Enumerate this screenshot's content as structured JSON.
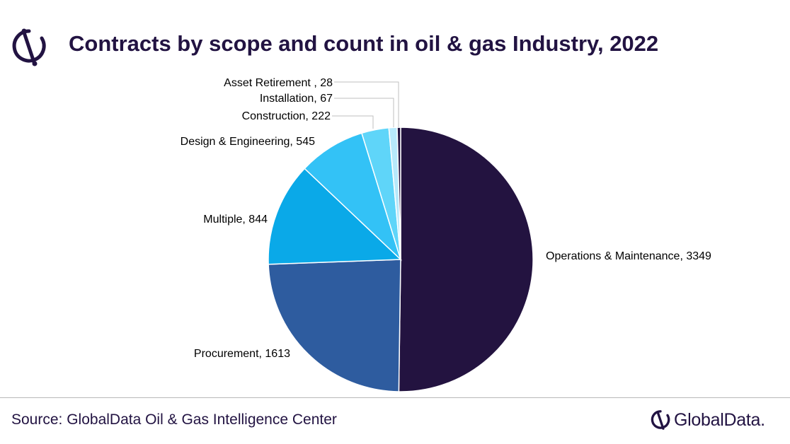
{
  "title": "Contracts by scope and count in oil & gas Industry, 2022",
  "footer": {
    "source": "Source: GlobalData Oil & Gas Intelligence Center",
    "brand": "GlobalData."
  },
  "colors": {
    "brand_dark": "#221342",
    "slices": [
      "#231340",
      "#2e5c9f",
      "#0aa9e8",
      "#33c2f6",
      "#5fd5f9",
      "#b7e9fb"
    ]
  },
  "icons": [
    "globaldata-logo-icon",
    "globaldata-brand-icon"
  ],
  "chart_data": {
    "type": "pie",
    "title": "Contracts by scope and count in oil & gas Industry, 2022",
    "slices": [
      {
        "label": "Operations & Maintenance",
        "value": 3349,
        "display": "Operations & Maintenance, 3349"
      },
      {
        "label": "Procurement",
        "value": 1613,
        "display": "Procurement, 1613"
      },
      {
        "label": "Multiple",
        "value": 844,
        "display": "Multiple, 844"
      },
      {
        "label": "Design & Engineering",
        "value": 545,
        "display": "Design & Engineering, 545"
      },
      {
        "label": "Construction",
        "value": 222,
        "display": "Construction, 222"
      },
      {
        "label": "Installation",
        "value": 67,
        "display": "Installation, 67"
      },
      {
        "label": "Asset Retirement",
        "value": 28,
        "display": "Asset Retirement , 28"
      }
    ]
  }
}
